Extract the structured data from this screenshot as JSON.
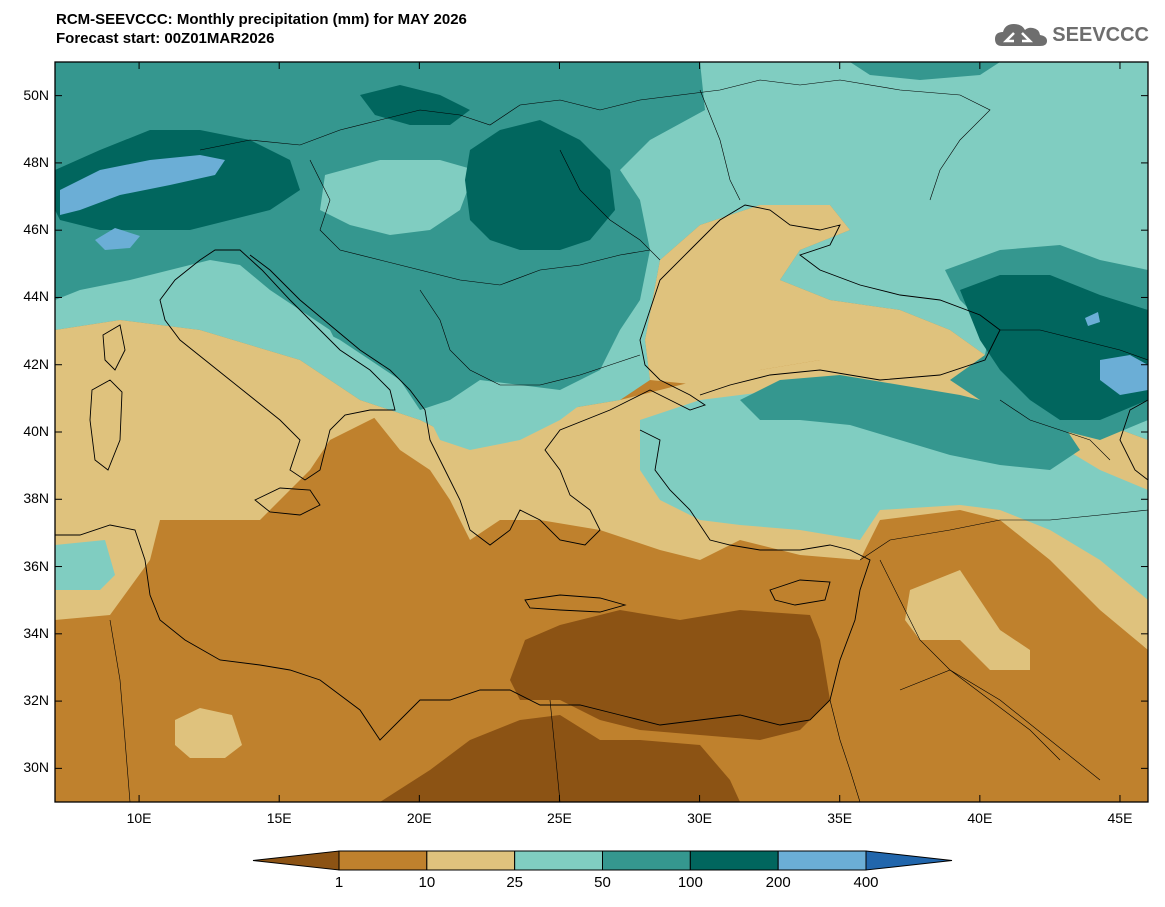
{
  "title": {
    "line1": "RCM-SEEVCCC: Monthly precipitation (mm) for MAY 2026",
    "line2": "Forecast start: 00Z01MAR2026"
  },
  "logo": {
    "text": "SEEVCCC",
    "icon": "cloud-icon"
  },
  "map": {
    "lat_ticks": [
      {
        "value": 50,
        "label": "50N"
      },
      {
        "value": 48,
        "label": "48N"
      },
      {
        "value": 46,
        "label": "46N"
      },
      {
        "value": 44,
        "label": "44N"
      },
      {
        "value": 42,
        "label": "42N"
      },
      {
        "value": 40,
        "label": "40N"
      },
      {
        "value": 38,
        "label": "38N"
      },
      {
        "value": 36,
        "label": "36N"
      },
      {
        "value": 34,
        "label": "34N"
      },
      {
        "value": 32,
        "label": "32N"
      },
      {
        "value": 30,
        "label": "30N"
      }
    ],
    "lon_ticks": [
      {
        "value": 10,
        "label": "10E"
      },
      {
        "value": 15,
        "label": "15E"
      },
      {
        "value": 20,
        "label": "20E"
      },
      {
        "value": 25,
        "label": "25E"
      },
      {
        "value": 30,
        "label": "30E"
      },
      {
        "value": 35,
        "label": "35E"
      },
      {
        "value": 40,
        "label": "40E"
      },
      {
        "value": 45,
        "label": "45E"
      }
    ]
  },
  "colorbar": {
    "colors": [
      "#8c5314",
      "#bf812d",
      "#dfc27d",
      "#80cdc1",
      "#35978f",
      "#01665e",
      "#6baed6",
      "#2166ac"
    ],
    "labels": [
      "1",
      "10",
      "25",
      "50",
      "100",
      "200",
      "400"
    ]
  }
}
